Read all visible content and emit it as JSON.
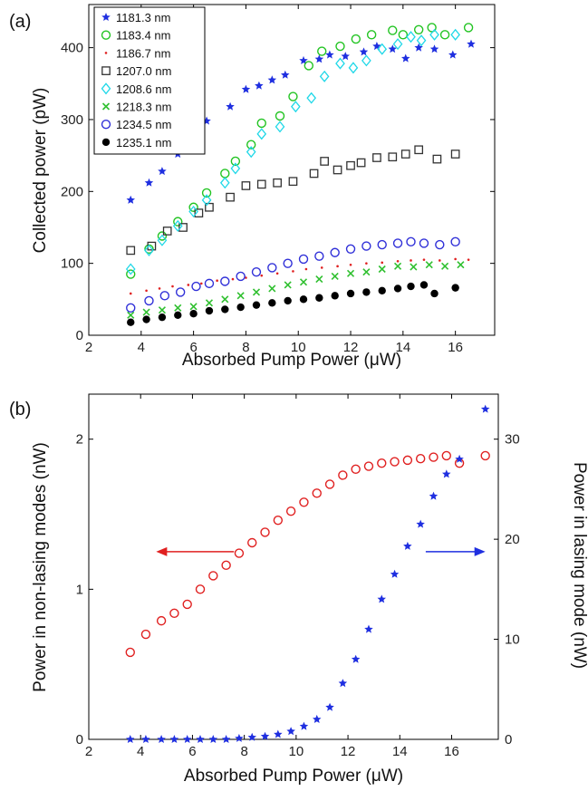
{
  "chart_data": [
    {
      "panel_label": "(a)",
      "type": "scatter",
      "xlabel": "Absorbed Pump Power (μW)",
      "ylabel": "Collected power (pW)",
      "xlim": [
        2,
        17.5
      ],
      "ylim": [
        0,
        460
      ],
      "xticks": [
        2,
        4,
        6,
        8,
        10,
        12,
        14,
        16
      ],
      "yticks": [
        0,
        100,
        200,
        300,
        400
      ],
      "legend_position": "top-left",
      "series": [
        {
          "name": "1181.3 nm",
          "color": "#1f2fe0",
          "marker": "star",
          "x": [
            3.6,
            4.3,
            4.8,
            5.4,
            6.2,
            6.5,
            7.4,
            8.0,
            8.5,
            9.0,
            9.5,
            10.2,
            10.8,
            11.2,
            11.8,
            12.5,
            13.0,
            13.6,
            14.1,
            14.6,
            15.2,
            15.9,
            16.6
          ],
          "y": [
            188,
            212,
            228,
            252,
            285,
            298,
            318,
            342,
            347,
            355,
            362,
            382,
            384,
            390,
            388,
            394,
            402,
            398,
            385,
            400,
            398,
            390,
            405
          ]
        },
        {
          "name": "1183.4 nm",
          "color": "#22c422",
          "marker": "circle-open",
          "x": [
            3.6,
            4.3,
            4.8,
            5.4,
            6.0,
            6.5,
            7.2,
            7.6,
            8.2,
            8.6,
            9.3,
            9.8,
            10.4,
            10.9,
            11.6,
            12.2,
            12.8,
            13.6,
            14.0,
            14.6,
            15.1,
            15.6,
            16.5
          ],
          "y": [
            85,
            120,
            138,
            158,
            178,
            198,
            225,
            242,
            265,
            295,
            305,
            332,
            375,
            395,
            402,
            412,
            418,
            424,
            418,
            425,
            428,
            418,
            428
          ]
        },
        {
          "name": "1186.7 nm",
          "color": "#e02020",
          "marker": "dot-small",
          "x": [
            3.6,
            4.2,
            4.7,
            5.2,
            5.8,
            6.3,
            6.9,
            7.5,
            8.0,
            8.6,
            9.2,
            9.8,
            10.3,
            10.9,
            11.5,
            12.0,
            12.6,
            13.2,
            13.8,
            14.3,
            14.8,
            15.4,
            16.0,
            16.5
          ],
          "y": [
            58,
            62,
            65,
            68,
            70,
            72,
            76,
            78,
            80,
            83,
            86,
            89,
            92,
            94,
            96,
            98,
            100,
            101,
            103,
            104,
            105,
            104,
            106,
            105
          ]
        },
        {
          "name": "1207.0 nm",
          "color": "#333333",
          "marker": "square-open",
          "x": [
            3.6,
            4.4,
            5.0,
            5.6,
            6.2,
            6.6,
            7.4,
            8.0,
            8.6,
            9.2,
            9.8,
            10.6,
            11.0,
            11.5,
            12.0,
            12.4,
            13.0,
            13.6,
            14.1,
            14.6,
            15.3,
            16.0
          ],
          "y": [
            118,
            124,
            145,
            150,
            170,
            178,
            192,
            208,
            210,
            212,
            214,
            225,
            242,
            230,
            236,
            240,
            247,
            248,
            252,
            258,
            245,
            252
          ]
        },
        {
          "name": "1208.6 nm",
          "color": "#20d8e8",
          "marker": "diamond-open",
          "x": [
            3.6,
            4.3,
            4.8,
            5.4,
            6.0,
            6.5,
            7.2,
            7.6,
            8.2,
            8.6,
            9.3,
            9.9,
            10.5,
            11.0,
            11.6,
            12.1,
            12.6,
            13.2,
            13.8,
            14.3,
            14.7,
            15.2,
            16.0
          ],
          "y": [
            92,
            118,
            132,
            152,
            172,
            188,
            212,
            232,
            255,
            280,
            290,
            318,
            330,
            360,
            378,
            372,
            382,
            398,
            405,
            415,
            410,
            418,
            418
          ]
        },
        {
          "name": "1218.3 nm",
          "color": "#30c030",
          "marker": "x",
          "x": [
            3.6,
            4.2,
            4.8,
            5.4,
            6.0,
            6.6,
            7.2,
            7.8,
            8.4,
            9.0,
            9.6,
            10.2,
            10.8,
            11.4,
            12.0,
            12.6,
            13.2,
            13.8,
            14.4,
            15.0,
            15.6,
            16.2
          ],
          "y": [
            28,
            32,
            35,
            38,
            40,
            45,
            50,
            55,
            60,
            65,
            70,
            74,
            78,
            82,
            86,
            88,
            92,
            96,
            95,
            98,
            96,
            98
          ]
        },
        {
          "name": "1234.5 nm",
          "color": "#3030d8",
          "marker": "circle-open",
          "x": [
            3.6,
            4.3,
            4.9,
            5.5,
            6.1,
            6.6,
            7.2,
            7.8,
            8.4,
            9.0,
            9.6,
            10.2,
            10.8,
            11.4,
            12.0,
            12.6,
            13.2,
            13.8,
            14.3,
            14.8,
            15.4,
            16.0
          ],
          "y": [
            38,
            48,
            55,
            60,
            68,
            72,
            75,
            82,
            88,
            94,
            100,
            106,
            110,
            115,
            120,
            124,
            126,
            128,
            130,
            128,
            126,
            130
          ]
        },
        {
          "name": "1235.1 nm",
          "color": "#000000",
          "marker": "circle-filled",
          "x": [
            3.6,
            4.2,
            4.8,
            5.4,
            6.0,
            6.6,
            7.2,
            7.8,
            8.4,
            9.0,
            9.6,
            10.2,
            10.8,
            11.4,
            12.0,
            12.6,
            13.2,
            13.8,
            14.3,
            14.8,
            15.2,
            16.0
          ],
          "y": [
            18,
            22,
            25,
            28,
            30,
            34,
            36,
            39,
            42,
            45,
            48,
            50,
            52,
            55,
            58,
            60,
            62,
            65,
            68,
            70,
            58,
            66
          ]
        }
      ]
    },
    {
      "panel_label": "(b)",
      "type": "scatter",
      "xlabel": "Absorbed Pump Power (μW)",
      "ylabel": "Power in non-lasing modes (nW)",
      "ylabel_right": "Power in lasing mode (nW)",
      "xlim": [
        2,
        17.8
      ],
      "ylim": [
        0,
        2.3
      ],
      "ylim_right": [
        0,
        34.5
      ],
      "xticks": [
        2,
        4,
        6,
        8,
        10,
        12,
        14,
        16
      ],
      "yticks": [
        0,
        1,
        2
      ],
      "yticks_right": [
        0,
        10,
        20,
        30
      ],
      "series": [
        {
          "axis": "left",
          "color": "#e02020",
          "marker": "circle-open",
          "x": [
            3.6,
            4.2,
            4.8,
            5.3,
            5.8,
            6.3,
            6.8,
            7.3,
            7.8,
            8.3,
            8.8,
            9.3,
            9.8,
            10.3,
            10.8,
            11.3,
            11.8,
            12.3,
            12.8,
            13.3,
            13.8,
            14.3,
            14.8,
            15.3,
            15.8,
            16.3,
            17.3
          ],
          "y": [
            0.58,
            0.7,
            0.79,
            0.84,
            0.9,
            1.0,
            1.09,
            1.16,
            1.24,
            1.31,
            1.38,
            1.46,
            1.52,
            1.58,
            1.64,
            1.7,
            1.76,
            1.8,
            1.82,
            1.84,
            1.85,
            1.86,
            1.87,
            1.88,
            1.89,
            1.84,
            1.89
          ]
        },
        {
          "axis": "right",
          "color": "#1f2fe0",
          "marker": "star",
          "x": [
            3.6,
            4.2,
            4.8,
            5.3,
            5.8,
            6.3,
            6.8,
            7.3,
            7.8,
            8.3,
            8.8,
            9.3,
            9.8,
            10.3,
            10.8,
            11.3,
            11.8,
            12.3,
            12.8,
            13.3,
            13.8,
            14.3,
            14.8,
            15.3,
            15.8,
            16.3,
            17.3
          ],
          "y": [
            0,
            0,
            0,
            0,
            0,
            0,
            0,
            0,
            0.1,
            0.2,
            0.3,
            0.5,
            0.8,
            1.3,
            2.0,
            3.2,
            5.6,
            8.0,
            11.0,
            14.0,
            16.5,
            19.3,
            21.5,
            24.3,
            26.5,
            28.0,
            33.0
          ]
        }
      ],
      "annotations": [
        {
          "text": "",
          "type": "arrow-left",
          "color": "#e02020",
          "from_x": 7.6,
          "to_x": 4.6,
          "y": 1.25
        },
        {
          "text": "",
          "type": "arrow-right",
          "color": "#1f2fe0",
          "from_x": 15.0,
          "to_x": 17.3,
          "y": 1.25
        }
      ]
    }
  ]
}
